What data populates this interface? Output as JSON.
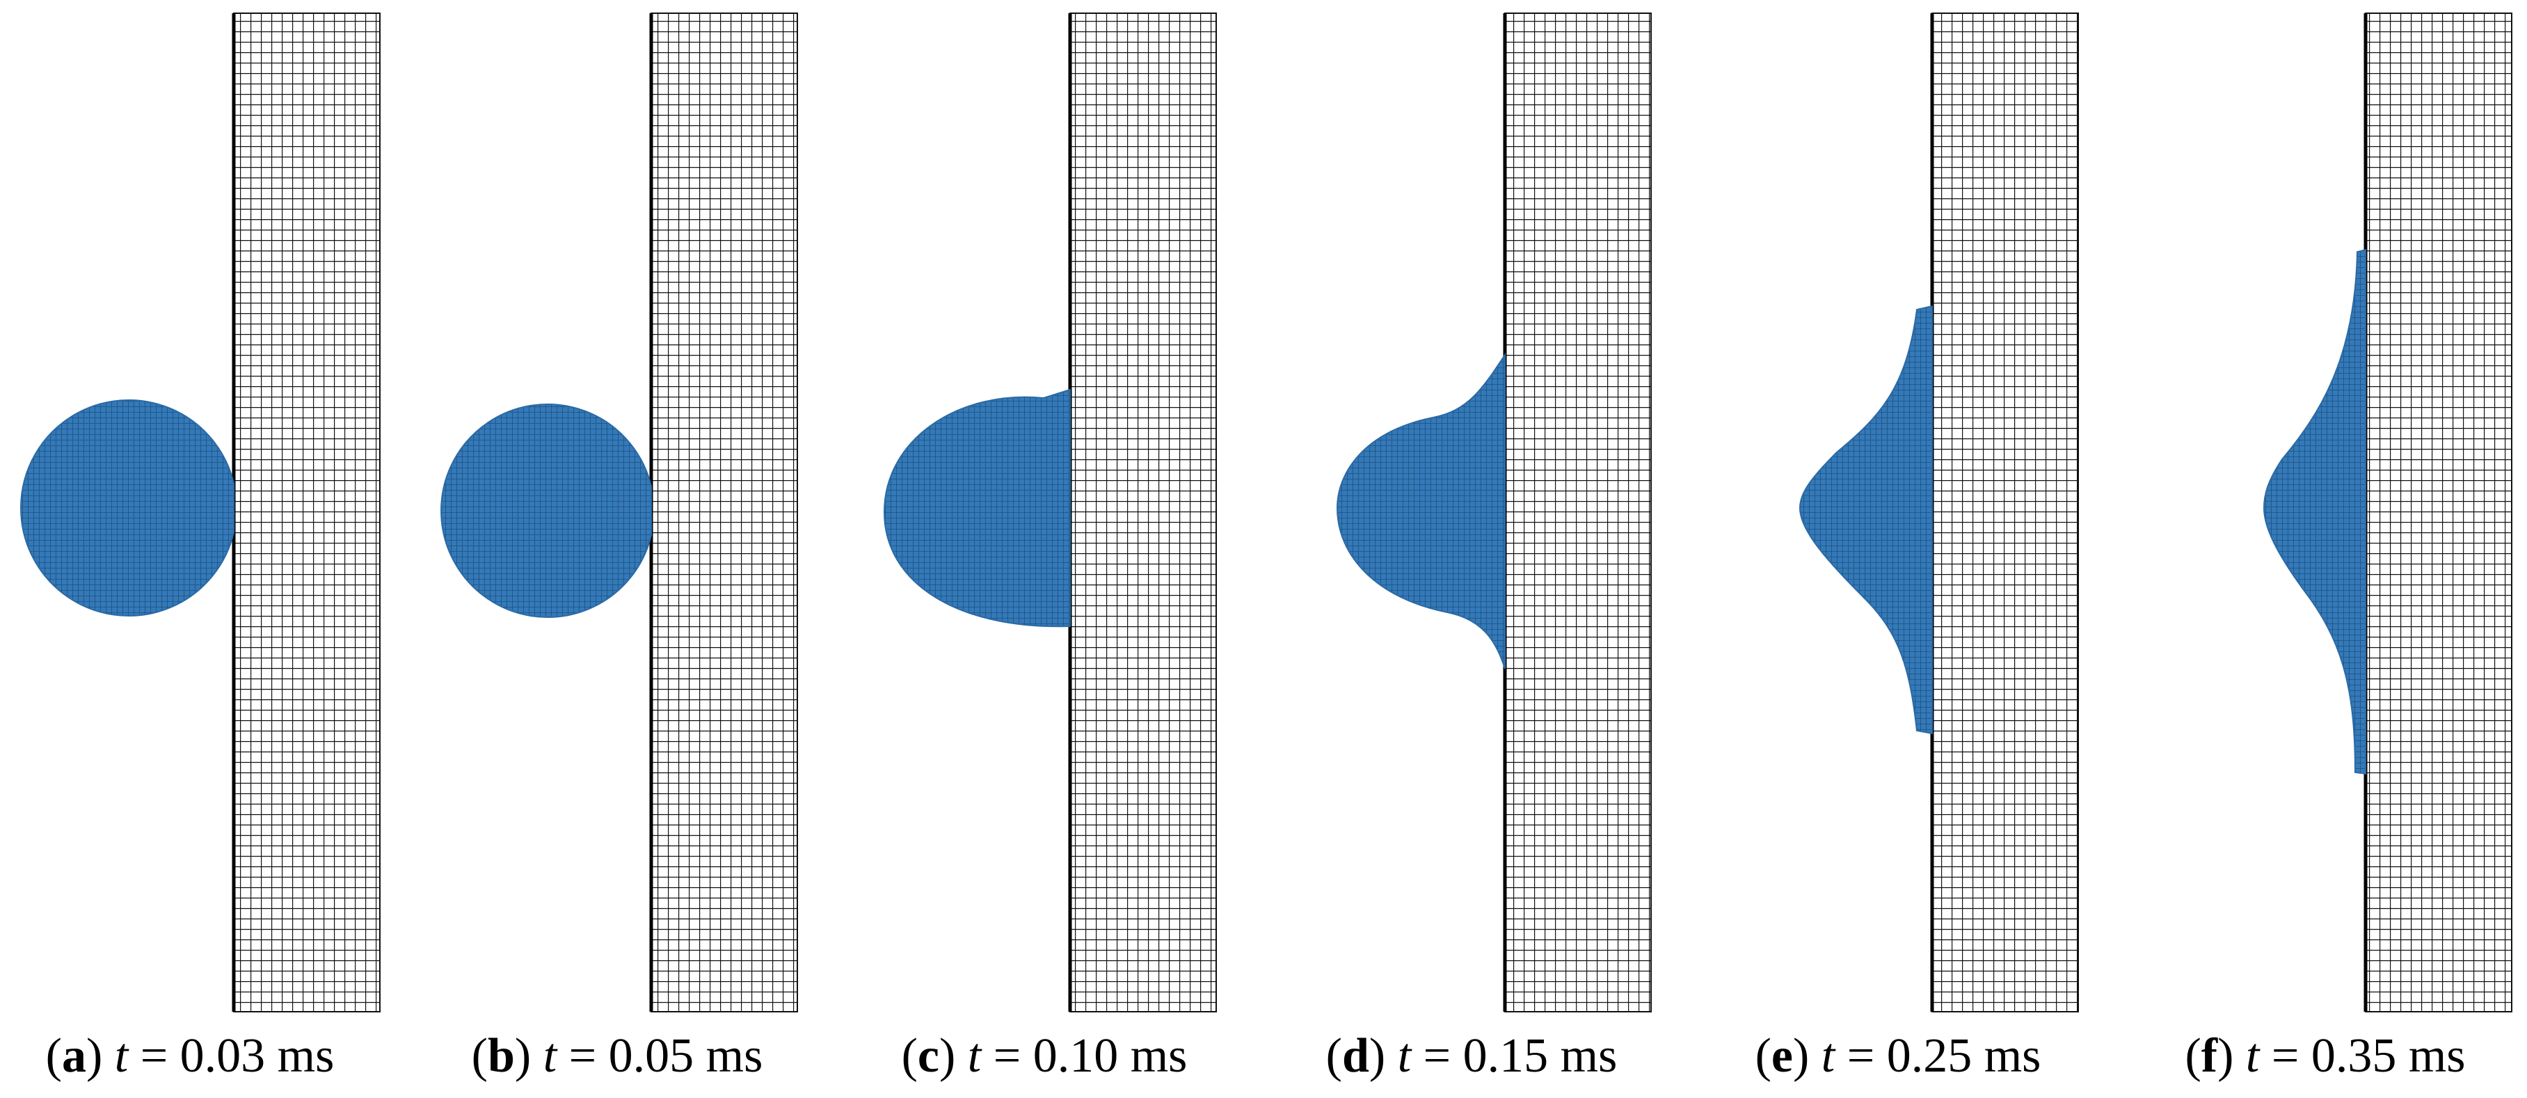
{
  "panels": [
    {
      "caption": [
        "(",
        "a",
        ") ",
        "t",
        " = 0.03 ms"
      ]
    },
    {
      "caption": [
        "(",
        "b",
        ") ",
        "t",
        " = 0.05 ms"
      ]
    },
    {
      "caption": [
        "(",
        "c",
        ") ",
        "t",
        " = 0.10 ms"
      ]
    },
    {
      "caption": [
        "(",
        "d",
        ") ",
        "t",
        " = 0.15 ms"
      ]
    },
    {
      "caption": [
        "(",
        "e",
        ") ",
        "t",
        " = 0.25 ms"
      ]
    },
    {
      "caption": [
        "(",
        "f",
        ") ",
        "t",
        " = 0.35 ms"
      ]
    }
  ]
}
